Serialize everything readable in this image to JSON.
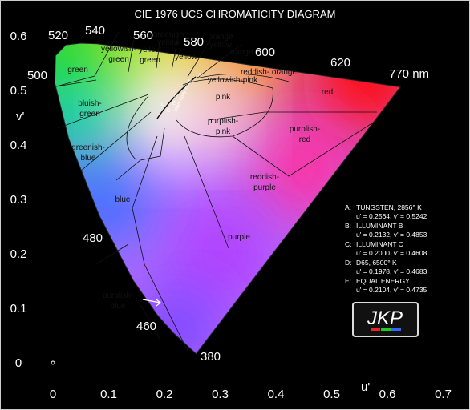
{
  "title": "CIE 1976 UCS CHROMATICITY DIAGRAM",
  "axes": {
    "x_label": "u'",
    "y_label": "v'",
    "xticks": [
      0,
      0.1,
      0.2,
      0.3,
      0.4,
      0.5,
      0.6,
      0.7
    ],
    "yticks": [
      0,
      0.1,
      0.2,
      0.3,
      0.4,
      0.5,
      0.6
    ]
  },
  "wavelengths": [
    "380",
    "460",
    "480",
    "500",
    "520",
    "540",
    "560",
    "580",
    "600",
    "620",
    "770 nm"
  ],
  "regions": [
    [
      "green"
    ],
    [
      "yellowish-",
      "green"
    ],
    [
      "greenish",
      "yellow"
    ],
    [
      "yellow",
      "green"
    ],
    [
      "yellow"
    ],
    [
      "orange",
      "yellow"
    ],
    [
      "orange"
    ],
    [
      "reddish- orange"
    ],
    [
      "yellowish-pink"
    ],
    [
      "pink"
    ],
    [
      "red"
    ],
    [
      "bluish-",
      "green"
    ],
    [
      "purplish-",
      "pink"
    ],
    [
      "purplish-",
      "red"
    ],
    [
      "greenish-",
      "blue"
    ],
    [
      "reddish-",
      "purple"
    ],
    [
      "blue"
    ],
    [
      "purple"
    ],
    [
      "purplish-",
      "blue"
    ]
  ],
  "locus_points": [
    "A",
    "B",
    "C",
    "D",
    "E"
  ],
  "locus_label": "black body locus",
  "legend": [
    {
      "key": "A:",
      "name": "TUNGSTEN, 2856° K",
      "coords": "u' = 0.2564, v' = 0.5242"
    },
    {
      "key": "B:",
      "name": "ILLUMINANT B",
      "coords": "u' = 0.2132, v' = 0.4853"
    },
    {
      "key": "C:",
      "name": "ILLUMINANT C",
      "coords": "u' = 0.2000, v' = 0.4608"
    },
    {
      "key": "D:",
      "name": "D65, 6500° K",
      "coords": "u' = 0.1978, v' = 0.4683"
    },
    {
      "key": "E:",
      "name": "EQUAL ENERGY",
      "coords": "u' = 0.2104, v' = 0.4735"
    }
  ],
  "logo": "JKP"
}
